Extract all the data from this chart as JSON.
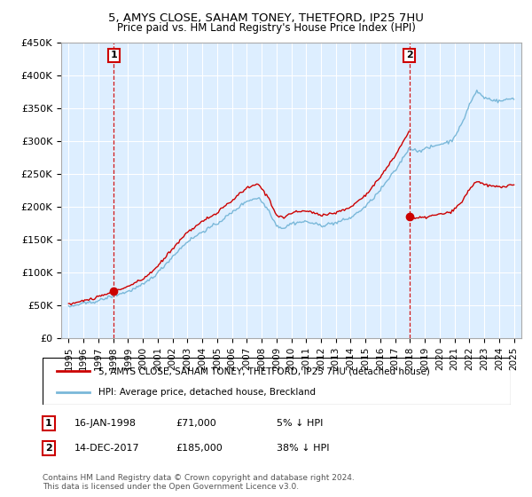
{
  "title1": "5, AMYS CLOSE, SAHAM TONEY, THETFORD, IP25 7HU",
  "title2": "Price paid vs. HM Land Registry's House Price Index (HPI)",
  "legend_line1": "5, AMYS CLOSE, SAHAM TONEY, THETFORD, IP25 7HU (detached house)",
  "legend_line2": "HPI: Average price, detached house, Breckland",
  "annotation1_date": "16-JAN-1998",
  "annotation1_price": "£71,000",
  "annotation1_hpi": "5% ↓ HPI",
  "annotation2_date": "14-DEC-2017",
  "annotation2_price": "£185,000",
  "annotation2_hpi": "38% ↓ HPI",
  "footnote": "Contains HM Land Registry data © Crown copyright and database right 2024.\nThis data is licensed under the Open Government Licence v3.0.",
  "sale1_year": 1998.04,
  "sale1_price": 71000,
  "sale2_year": 2017.95,
  "sale2_price": 185000,
  "hpi_color": "#7ab8d9",
  "price_color": "#cc0000",
  "dashed_color": "#cc0000",
  "bg_color": "#ffffff",
  "plot_bg_color": "#ddeeff",
  "grid_color": "#ffffff",
  "ylim_min": 0,
  "ylim_max": 450000,
  "xlim_min": 1994.5,
  "xlim_max": 2025.5
}
